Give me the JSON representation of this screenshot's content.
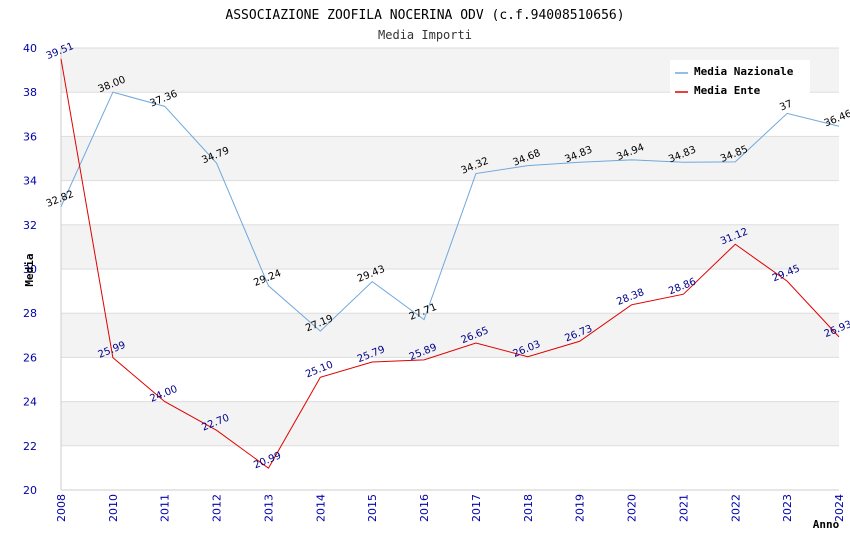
{
  "chart_data": {
    "type": "line",
    "title": "ASSOCIAZIONE ZOOFILA NOCERINA ODV (c.f.94008510656)",
    "subtitle": "Media Importi",
    "xlabel": "Anno",
    "ylabel": "Media",
    "categories": [
      "2008",
      "2010",
      "2011",
      "2012",
      "2013",
      "2014",
      "2015",
      "2016",
      "2017",
      "2018",
      "2019",
      "2020",
      "2021",
      "2022",
      "2023",
      "2024"
    ],
    "ylim": [
      20,
      40
    ],
    "yticks": [
      20,
      22,
      24,
      26,
      28,
      30,
      32,
      34,
      36,
      38,
      40
    ],
    "grid": true,
    "legend_position": "top-right",
    "series": [
      {
        "name": "Media Nazionale",
        "color": "#6fa8dc",
        "values": [
          32.82,
          38.0,
          37.36,
          34.79,
          29.24,
          27.19,
          29.43,
          27.71,
          34.32,
          34.68,
          34.83,
          34.94,
          34.83,
          34.85,
          37.04,
          36.46
        ],
        "labels": [
          "32.82",
          "38.00",
          "37.36",
          "34.79",
          "29.24",
          "27.19",
          "29.43",
          "27.71",
          "34.32",
          "34.68",
          "34.83",
          "34.94",
          "34.83",
          "34.85",
          "37",
          "36.46"
        ]
      },
      {
        "name": "Media Ente",
        "color": "#e00000",
        "values": [
          39.51,
          25.99,
          24.0,
          22.7,
          20.99,
          25.1,
          25.79,
          25.89,
          26.65,
          26.03,
          26.73,
          28.38,
          28.86,
          31.12,
          29.45,
          26.93
        ],
        "labels": [
          "39.51",
          "25.99",
          "24.00",
          "22.70",
          "20.99",
          "25.10",
          "25.79",
          "25.89",
          "26.65",
          "26.03",
          "26.73",
          "28.38",
          "28.86",
          "31.12",
          "29.45",
          "26.93"
        ]
      }
    ]
  }
}
